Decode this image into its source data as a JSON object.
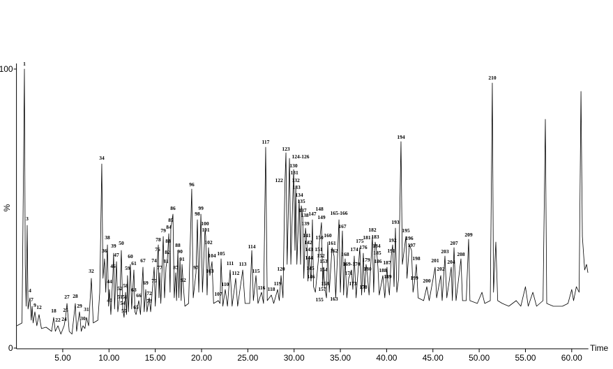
{
  "chart_data": {
    "type": "line",
    "x_label": "Time",
    "y_label": "%",
    "xlim": [
      0,
      61.8
    ],
    "ylim": [
      0,
      100
    ],
    "xticks": [
      {
        "value": 5,
        "label": "5.00"
      },
      {
        "value": 10,
        "label": "10.00"
      },
      {
        "value": 15,
        "label": "15.00"
      },
      {
        "value": 20,
        "label": "20.00"
      },
      {
        "value": 25,
        "label": "25.00"
      },
      {
        "value": 30,
        "label": "30.00"
      },
      {
        "value": 35,
        "label": "35.00"
      },
      {
        "value": 40,
        "label": "40.00"
      },
      {
        "value": 45,
        "label": "45.00"
      },
      {
        "value": 50,
        "label": "50.00"
      },
      {
        "value": 55,
        "label": "55.00"
      },
      {
        "value": 60,
        "label": "60.00"
      }
    ],
    "yticks": [
      0,
      100
    ],
    "color": "#000000",
    "x": [
      0.05,
      0.6,
      0.75,
      0.86,
      0.95,
      1.05,
      1.16,
      1.25,
      1.46,
      1.6,
      1.69,
      1.8,
      1.99,
      2.2,
      2.44,
      2.7,
      3.2,
      3.8,
      4.02,
      4.2,
      4.48,
      4.8,
      5.15,
      5.31,
      5.46,
      5.7,
      6.0,
      6.36,
      6.5,
      6.81,
      7.0,
      7.19,
      7.4,
      7.57,
      7.8,
      8.09,
      8.3,
      8.8,
      9.0,
      9.22,
      9.35,
      9.52,
      9.65,
      9.83,
      9.95,
      10.05,
      10.2,
      10.43,
      10.5,
      10.6,
      10.81,
      10.95,
      11.18,
      11.33,
      11.48,
      11.63,
      11.71,
      11.79,
      11.9,
      12.0,
      12.1,
      12.31,
      12.45,
      12.69,
      12.8,
      12.92,
      13.22,
      13.4,
      13.67,
      13.8,
      13.97,
      14.1,
      14.35,
      14.5,
      14.88,
      15.0,
      15.25,
      15.33,
      15.4,
      15.48,
      15.6,
      15.86,
      16.0,
      16.16,
      16.31,
      16.38,
      16.46,
      16.6,
      16.68,
      16.91,
      17.05,
      17.21,
      17.3,
      17.44,
      17.55,
      17.67,
      17.8,
      17.89,
      18.04,
      18.2,
      18.6,
      18.94,
      19.1,
      19.4,
      19.55,
      19.7,
      19.93,
      20.1,
      20.38,
      20.45,
      20.6,
      20.75,
      20.9,
      21.13,
      21.3,
      21.81,
      22.0,
      22.11,
      22.3,
      22.56,
      22.8,
      23.09,
      23.3,
      23.69,
      23.9,
      24.45,
      24.7,
      25.2,
      25.43,
      25.6,
      25.88,
      26.1,
      26.48,
      26.7,
      26.93,
      27.1,
      27.54,
      27.8,
      28.22,
      28.4,
      28.59,
      28.8,
      29.0,
      29.12,
      29.25,
      29.5,
      29.65,
      29.95,
      30.1,
      30.18,
      30.3,
      30.55,
      30.7,
      30.78,
      30.93,
      31.05,
      31.23,
      31.38,
      31.5,
      31.61,
      31.76,
      31.83,
      31.98,
      32.1,
      32.3,
      32.66,
      32.74,
      32.96,
      33.1,
      33.19,
      33.34,
      33.5,
      33.64,
      33.8,
      34.1,
      34.32,
      34.5,
      34.85,
      35.0,
      35.22,
      35.35,
      35.52,
      35.7,
      35.9,
      36.2,
      36.35,
      36.5,
      36.7,
      37.1,
      37.3,
      37.48,
      37.6,
      37.78,
      37.93,
      38.1,
      38.46,
      38.6,
      38.76,
      38.91,
      38.99,
      39.06,
      39.2,
      39.59,
      39.8,
      40.04,
      40.12,
      40.3,
      40.5,
      40.65,
      40.8,
      40.95,
      41.1,
      41.3,
      41.55,
      41.7,
      42.08,
      42.2,
      42.46,
      42.69,
      42.85,
      42.99,
      43.21,
      43.4,
      44.0,
      44.34,
      44.6,
      45.24,
      45.4,
      45.85,
      46.0,
      46.3,
      46.5,
      46.98,
      47.1,
      47.28,
      47.5,
      48.03,
      48.2,
      48.6,
      48.86,
      49.0,
      49.8,
      50.3,
      50.6,
      51.2,
      51.42,
      51.55,
      51.8,
      52.0,
      52.5,
      53.2,
      54.0,
      54.5,
      55.0,
      55.3,
      55.8,
      56.2,
      56.9,
      57.15,
      57.3,
      58.0,
      59.0,
      59.6,
      60.0,
      60.2,
      60.5,
      60.8,
      61.0,
      61.15,
      61.4,
      61.6,
      61.75
    ],
    "values": [
      8,
      9,
      60,
      100,
      30,
      15,
      44,
      14,
      18,
      10,
      15,
      9,
      13,
      8,
      12,
      7,
      7.5,
      6,
      11,
      6,
      8,
      5,
      8,
      11,
      16,
      6,
      5,
      16,
      6,
      13,
      6,
      8,
      7,
      11,
      8,
      25,
      9,
      10,
      20,
      66,
      25,
      32,
      20,
      37,
      15,
      21,
      12,
      27,
      34,
      14,
      31,
      13,
      19,
      35,
      14,
      11,
      16,
      20,
      12,
      26,
      13,
      30,
      14,
      28,
      13,
      12,
      17,
      12,
      29,
      13,
      21,
      13,
      18,
      13,
      29,
      15,
      33,
      37,
      18,
      27,
      16,
      40,
      18,
      29,
      32,
      36,
      41,
      20,
      43,
      48,
      18,
      27,
      17,
      35,
      18,
      32,
      17,
      30,
      22,
      15,
      16,
      57,
      18,
      27,
      46,
      20,
      48,
      20,
      43,
      40,
      19,
      36,
      26,
      31,
      16,
      17,
      16,
      32,
      15,
      21,
      15,
      28,
      15,
      25,
      15,
      28,
      16,
      16,
      35,
      17,
      26,
      16,
      20,
      16,
      72,
      17,
      19,
      16,
      21,
      17,
      26,
      18,
      58,
      70,
      30,
      68,
      30,
      64,
      35,
      58,
      30,
      53,
      30,
      51,
      47,
      25,
      43,
      38,
      24,
      33,
      27,
      24,
      46,
      22,
      20,
      33,
      38,
      45,
      22,
      29,
      21,
      18,
      38,
      20,
      36,
      33,
      18,
      46,
      20,
      42,
      19,
      32,
      18,
      25,
      28,
      21,
      33,
      18,
      36,
      19,
      34,
      20,
      30,
      26,
      19,
      40,
      20,
      38,
      35,
      32,
      29,
      19,
      26,
      18,
      29,
      24,
      19,
      33,
      37,
      22,
      43,
      20,
      25,
      74,
      30,
      40,
      25,
      37,
      35,
      20,
      23,
      30,
      18,
      17,
      22,
      17,
      29,
      18,
      26,
      17,
      33,
      18,
      29,
      17,
      36,
      17,
      32,
      17,
      17,
      39,
      17,
      16,
      20,
      16,
      17,
      95,
      20,
      38,
      17,
      16,
      15,
      17,
      15,
      22,
      15,
      20,
      15,
      17,
      82,
      16,
      15,
      15,
      16,
      21,
      17,
      22,
      20,
      92,
      40,
      28,
      30,
      27
    ],
    "annotations": [
      {
        "label": "1",
        "x": 0.86,
        "y": 101.2
      },
      {
        "label": "3",
        "x": 1.16,
        "y": 45.8
      },
      {
        "label": "4",
        "x": 1.46,
        "y": 20
      },
      {
        "label": "7",
        "x": 1.69,
        "y": 16.8
      },
      {
        "label": "9",
        "x": 1.99,
        "y": 14.8
      },
      {
        "label": "12",
        "x": 2.44,
        "y": 14
      },
      {
        "label": "18",
        "x": 4.02,
        "y": 12.8
      },
      {
        "label": "22",
        "x": 4.48,
        "y": 9.5
      },
      {
        "label": "24",
        "x": 5.15,
        "y": 9.8
      },
      {
        "label": "25",
        "x": 5.31,
        "y": 13
      },
      {
        "label": "27",
        "x": 5.46,
        "y": 17.8
      },
      {
        "label": "28",
        "x": 6.36,
        "y": 18
      },
      {
        "label": "29",
        "x": 6.81,
        "y": 14.5
      },
      {
        "label": "30",
        "x": 7.19,
        "y": 10
      },
      {
        "label": "31",
        "x": 7.57,
        "y": 13.3
      },
      {
        "label": "32",
        "x": 8.09,
        "y": 27
      },
      {
        "label": "34",
        "x": 9.22,
        "y": 67.5
      },
      {
        "label": "36",
        "x": 9.52,
        "y": 34.3
      },
      {
        "label": "38",
        "x": 9.83,
        "y": 39
      },
      {
        "label": "39",
        "x": 10.5,
        "y": 36
      },
      {
        "label": "40",
        "x": 10.05,
        "y": 16.5
      },
      {
        "label": "44",
        "x": 10.05,
        "y": 23.3
      },
      {
        "label": "46",
        "x": 10.43,
        "y": 28.8
      },
      {
        "label": "47",
        "x": 10.81,
        "y": 32.8
      },
      {
        "label": "50",
        "x": 11.33,
        "y": 37
      },
      {
        "label": "51",
        "x": 11.18,
        "y": 17.8
      },
      {
        "label": "52",
        "x": 11.18,
        "y": 20.8
      },
      {
        "label": "54",
        "x": 11.48,
        "y": 15.5
      },
      {
        "label": "55",
        "x": 11.63,
        "y": 12.8
      },
      {
        "label": "56",
        "x": 11.71,
        "y": 17.8
      },
      {
        "label": "58",
        "x": 11.79,
        "y": 21.8
      },
      {
        "label": "59",
        "x": 12.0,
        "y": 28
      },
      {
        "label": "60",
        "x": 12.31,
        "y": 32.3
      },
      {
        "label": "61",
        "x": 12.69,
        "y": 29.8
      },
      {
        "label": "63",
        "x": 12.69,
        "y": 20.3
      },
      {
        "label": "65",
        "x": 12.92,
        "y": 14
      },
      {
        "label": "66",
        "x": 13.22,
        "y": 18.3
      },
      {
        "label": "67",
        "x": 13.67,
        "y": 30.8
      },
      {
        "label": "69",
        "x": 13.97,
        "y": 22.8
      },
      {
        "label": "72",
        "x": 14.35,
        "y": 19
      },
      {
        "label": "73",
        "x": 14.35,
        "y": 16.3
      },
      {
        "label": "74",
        "x": 14.88,
        "y": 30.8
      },
      {
        "label": "75",
        "x": 14.88,
        "y": 23.5
      },
      {
        "label": "76",
        "x": 15.25,
        "y": 34.8
      },
      {
        "label": "77",
        "x": 15.48,
        "y": 28.3
      },
      {
        "label": "78",
        "x": 15.33,
        "y": 38.3
      },
      {
        "label": "79",
        "x": 15.86,
        "y": 41.5
      },
      {
        "label": "81",
        "x": 16.16,
        "y": 30.5
      },
      {
        "label": "82",
        "x": 16.31,
        "y": 33.8
      },
      {
        "label": "83",
        "x": 16.38,
        "y": 37.8
      },
      {
        "label": "84",
        "x": 16.46,
        "y": 42.8
      },
      {
        "label": "85",
        "x": 16.68,
        "y": 45.3
      },
      {
        "label": "86",
        "x": 16.91,
        "y": 49.5
      },
      {
        "label": "87",
        "x": 17.21,
        "y": 28.3
      },
      {
        "label": "88",
        "x": 17.44,
        "y": 36.3
      },
      {
        "label": "90",
        "x": 17.67,
        "y": 34
      },
      {
        "label": "91",
        "x": 17.89,
        "y": 31.3
      },
      {
        "label": "92",
        "x": 18.04,
        "y": 23.8
      },
      {
        "label": "96",
        "x": 18.94,
        "y": 58
      },
      {
        "label": "97",
        "x": 19.4,
        "y": 28.3
      },
      {
        "label": "98",
        "x": 19.55,
        "y": 47.5
      },
      {
        "label": "99",
        "x": 19.93,
        "y": 49.5
      },
      {
        "label": "100",
        "x": 20.38,
        "y": 44
      },
      {
        "label": "101",
        "x": 20.45,
        "y": 41.8
      },
      {
        "label": "102",
        "x": 20.75,
        "y": 37.3
      },
      {
        "label": "103",
        "x": 20.9,
        "y": 27
      },
      {
        "label": "104",
        "x": 21.13,
        "y": 32.5
      },
      {
        "label": "105",
        "x": 22.11,
        "y": 33.3
      },
      {
        "label": "107",
        "x": 21.81,
        "y": 18.8
      },
      {
        "label": "110",
        "x": 22.56,
        "y": 22.3
      },
      {
        "label": "111",
        "x": 23.09,
        "y": 29.8
      },
      {
        "label": "112",
        "x": 23.69,
        "y": 26.3
      },
      {
        "label": "113",
        "x": 24.45,
        "y": 29.5
      },
      {
        "label": "114",
        "x": 25.43,
        "y": 35.8
      },
      {
        "label": "115",
        "x": 25.88,
        "y": 27
      },
      {
        "label": "116",
        "x": 26.48,
        "y": 21
      },
      {
        "label": "117",
        "x": 26.93,
        "y": 73.3
      },
      {
        "label": "118",
        "x": 27.54,
        "y": 20.5
      },
      {
        "label": "119",
        "x": 28.22,
        "y": 22.5
      },
      {
        "label": "120",
        "x": 28.59,
        "y": 27.8
      },
      {
        "label": "122",
        "x": 28.37,
        "y": 59.5
      },
      {
        "label": "123",
        "x": 29.12,
        "y": 70.8
      },
      {
        "label": "124-126",
        "x": 30.7,
        "y": 68
      },
      {
        "label": "130",
        "x": 29.95,
        "y": 64.8
      },
      {
        "label": "131",
        "x": 30.03,
        "y": 62.3
      },
      {
        "label": "132",
        "x": 30.18,
        "y": 59.5
      },
      {
        "label": "133",
        "x": 30.26,
        "y": 57
      },
      {
        "label": "134",
        "x": 30.55,
        "y": 54.3
      },
      {
        "label": "135",
        "x": 30.78,
        "y": 52
      },
      {
        "label": "137",
        "x": 30.93,
        "y": 48.8
      },
      {
        "label": "138",
        "x": 31.15,
        "y": 47
      },
      {
        "label": "139",
        "x": 31.23,
        "y": 44
      },
      {
        "label": "141",
        "x": 31.38,
        "y": 39.8
      },
      {
        "label": "142",
        "x": 31.53,
        "y": 37.3
      },
      {
        "label": "143",
        "x": 31.61,
        "y": 34.8
      },
      {
        "label": "144",
        "x": 31.61,
        "y": 31.8
      },
      {
        "label": "145",
        "x": 31.76,
        "y": 28
      },
      {
        "label": "146",
        "x": 31.83,
        "y": 25
      },
      {
        "label": "147",
        "x": 31.98,
        "y": 47.5
      },
      {
        "label": "148",
        "x": 32.74,
        "y": 49.3
      },
      {
        "label": "149",
        "x": 32.96,
        "y": 46.3
      },
      {
        "label": "150",
        "x": 32.74,
        "y": 39
      },
      {
        "label": "151",
        "x": 32.66,
        "y": 34.8
      },
      {
        "label": "152",
        "x": 32.89,
        "y": 32.5
      },
      {
        "label": "153",
        "x": 33.19,
        "y": 30.5
      },
      {
        "label": "154",
        "x": 33.19,
        "y": 27.5
      },
      {
        "label": "155",
        "x": 32.74,
        "y": 16.8
      },
      {
        "label": "157",
        "x": 33.04,
        "y": 20.5
      },
      {
        "label": "158",
        "x": 33.34,
        "y": 22.5
      },
      {
        "label": "160",
        "x": 33.64,
        "y": 39.8
      },
      {
        "label": "161",
        "x": 34.1,
        "y": 37
      },
      {
        "label": "162",
        "x": 34.32,
        "y": 34.3
      },
      {
        "label": "163",
        "x": 34.32,
        "y": 17
      },
      {
        "label": "165-166",
        "x": 34.85,
        "y": 47.8
      },
      {
        "label": "167",
        "x": 35.22,
        "y": 43
      },
      {
        "label": "168",
        "x": 35.52,
        "y": 33
      },
      {
        "label": "169-170",
        "x": 36.2,
        "y": 29.5
      },
      {
        "label": "171",
        "x": 35.9,
        "y": 26.3
      },
      {
        "label": "173",
        "x": 36.35,
        "y": 22.5
      },
      {
        "label": "174",
        "x": 36.5,
        "y": 34.8
      },
      {
        "label": "175",
        "x": 37.1,
        "y": 37.8
      },
      {
        "label": "176",
        "x": 37.48,
        "y": 35.5
      },
      {
        "label": "178",
        "x": 37.48,
        "y": 21.3
      },
      {
        "label": "179",
        "x": 37.78,
        "y": 31
      },
      {
        "label": "180",
        "x": 37.93,
        "y": 27.8
      },
      {
        "label": "181",
        "x": 37.86,
        "y": 39
      },
      {
        "label": "182",
        "x": 38.46,
        "y": 41.8
      },
      {
        "label": "183",
        "x": 38.76,
        "y": 39.3
      },
      {
        "label": "184",
        "x": 38.91,
        "y": 36
      },
      {
        "label": "185",
        "x": 38.99,
        "y": 33.5
      },
      {
        "label": "186",
        "x": 39.06,
        "y": 30.5
      },
      {
        "label": "187",
        "x": 40.04,
        "y": 30
      },
      {
        "label": "188",
        "x": 39.59,
        "y": 27.3
      },
      {
        "label": "189",
        "x": 40.12,
        "y": 25
      },
      {
        "label": "191",
        "x": 40.5,
        "y": 34.3
      },
      {
        "label": "192",
        "x": 40.65,
        "y": 38
      },
      {
        "label": "193",
        "x": 40.95,
        "y": 44.5
      },
      {
        "label": "194",
        "x": 41.55,
        "y": 75
      },
      {
        "label": "195",
        "x": 42.08,
        "y": 41.5
      },
      {
        "label": "196",
        "x": 42.46,
        "y": 38.8
      },
      {
        "label": "197",
        "x": 42.69,
        "y": 36.3
      },
      {
        "label": "198",
        "x": 43.21,
        "y": 31.5
      },
      {
        "label": "199",
        "x": 42.99,
        "y": 24.5
      },
      {
        "label": "200",
        "x": 44.34,
        "y": 23.5
      },
      {
        "label": "201",
        "x": 45.24,
        "y": 30.8
      },
      {
        "label": "202",
        "x": 45.85,
        "y": 27.8
      },
      {
        "label": "203",
        "x": 46.3,
        "y": 34
      },
      {
        "label": "204",
        "x": 46.98,
        "y": 30.3
      },
      {
        "label": "207",
        "x": 47.28,
        "y": 37
      },
      {
        "label": "208",
        "x": 48.03,
        "y": 33
      },
      {
        "label": "209",
        "x": 48.86,
        "y": 40
      },
      {
        "label": "210",
        "x": 51.42,
        "y": 96.3
      }
    ]
  }
}
